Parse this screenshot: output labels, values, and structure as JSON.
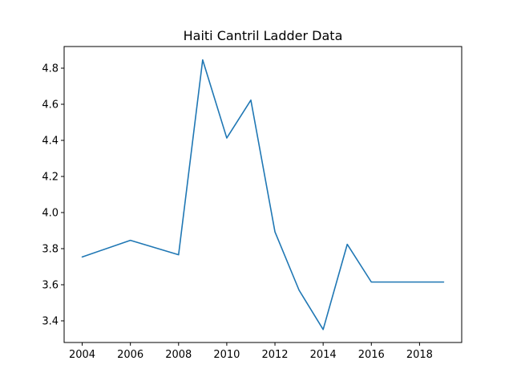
{
  "chart_data": {
    "type": "line",
    "title": "Haiti Cantril Ladder Data",
    "xlabel": "",
    "ylabel": "",
    "x": [
      2004,
      2006,
      2008,
      2009,
      2010,
      2011,
      2012,
      2013,
      2014,
      2015,
      2016,
      2017,
      2018,
      2019
    ],
    "series": [
      {
        "values": [
          3.754,
          3.846,
          3.766,
          4.846,
          4.413,
          4.623,
          3.893,
          3.57,
          3.352,
          3.824,
          3.615,
          3.615,
          3.615,
          3.615
        ],
        "color": "#1f77b4"
      }
    ],
    "xlim": [
      2003.25,
      2019.75
    ],
    "ylim": [
      3.28,
      4.92
    ],
    "x_ticks": [
      2004,
      2006,
      2008,
      2010,
      2012,
      2014,
      2016,
      2018
    ],
    "y_ticks": [
      3.4,
      3.6,
      3.8,
      4.0,
      4.2,
      4.4,
      4.6,
      4.8
    ],
    "x_tick_labels": [
      "2004",
      "2006",
      "2008",
      "2010",
      "2012",
      "2014",
      "2016",
      "2018"
    ],
    "y_tick_labels": [
      "3.4",
      "3.6",
      "3.8",
      "4.0",
      "4.2",
      "4.4",
      "4.6",
      "4.8"
    ],
    "grid": false,
    "legend": "none"
  }
}
